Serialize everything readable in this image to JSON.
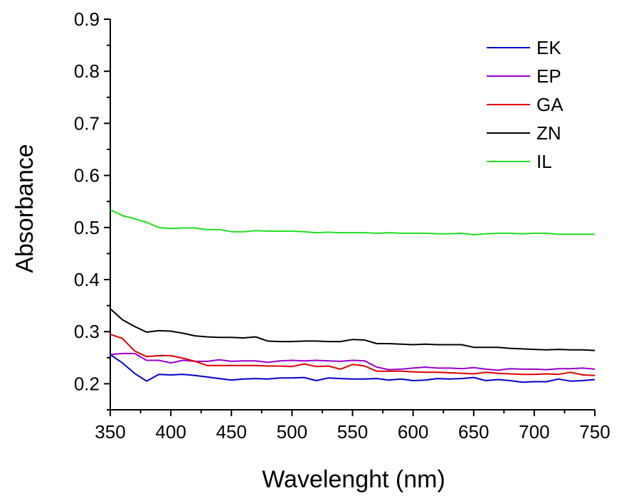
{
  "chart_data": {
    "type": "line",
    "title": "",
    "xlabel": "Wavelenght (nm)",
    "ylabel": "Absorbance",
    "xlim": [
      350,
      750
    ],
    "ylim": [
      0.15,
      0.9
    ],
    "x_ticks": [
      "350",
      "400",
      "450",
      "500",
      "550",
      "600",
      "650",
      "700",
      "750"
    ],
    "y_ticks": [
      "0.2",
      "0.3",
      "0.4",
      "0.5",
      "0.6",
      "0.7",
      "0.8",
      "0.9"
    ],
    "grid": false,
    "legend_position": "top-right",
    "x": [
      350,
      360,
      370,
      380,
      390,
      400,
      410,
      420,
      430,
      440,
      450,
      460,
      470,
      480,
      490,
      500,
      510,
      520,
      530,
      540,
      550,
      560,
      570,
      580,
      590,
      600,
      610,
      620,
      630,
      640,
      650,
      660,
      670,
      680,
      690,
      700,
      710,
      720,
      730,
      740,
      750
    ],
    "series": [
      {
        "name": "EK",
        "color": "#0000cc",
        "values": [
          0.256,
          0.24,
          0.22,
          0.205,
          0.218,
          0.217,
          0.218,
          0.216,
          0.213,
          0.21,
          0.207,
          0.209,
          0.21,
          0.209,
          0.211,
          0.211,
          0.212,
          0.206,
          0.211,
          0.21,
          0.209,
          0.209,
          0.21,
          0.207,
          0.209,
          0.206,
          0.207,
          0.21,
          0.209,
          0.21,
          0.212,
          0.206,
          0.208,
          0.206,
          0.203,
          0.204,
          0.204,
          0.209,
          0.205,
          0.206,
          0.208
        ]
      },
      {
        "name": "EP",
        "color": "#9900cc",
        "values": [
          0.256,
          0.258,
          0.258,
          0.245,
          0.245,
          0.24,
          0.245,
          0.243,
          0.243,
          0.246,
          0.243,
          0.244,
          0.244,
          0.241,
          0.244,
          0.245,
          0.244,
          0.245,
          0.244,
          0.243,
          0.245,
          0.244,
          0.232,
          0.227,
          0.228,
          0.23,
          0.232,
          0.23,
          0.23,
          0.229,
          0.231,
          0.228,
          0.226,
          0.229,
          0.228,
          0.228,
          0.227,
          0.229,
          0.229,
          0.23,
          0.228
        ]
      },
      {
        "name": "GA",
        "color": "#e00000",
        "values": [
          0.295,
          0.287,
          0.263,
          0.252,
          0.254,
          0.254,
          0.249,
          0.243,
          0.235,
          0.235,
          0.235,
          0.235,
          0.235,
          0.234,
          0.234,
          0.233,
          0.238,
          0.233,
          0.234,
          0.228,
          0.237,
          0.234,
          0.224,
          0.224,
          0.224,
          0.223,
          0.222,
          0.222,
          0.221,
          0.22,
          0.219,
          0.222,
          0.22,
          0.219,
          0.218,
          0.218,
          0.219,
          0.218,
          0.222,
          0.217,
          0.216
        ]
      },
      {
        "name": "ZN",
        "color": "#000000",
        "values": [
          0.344,
          0.323,
          0.31,
          0.299,
          0.302,
          0.301,
          0.297,
          0.292,
          0.29,
          0.289,
          0.289,
          0.288,
          0.29,
          0.282,
          0.281,
          0.281,
          0.282,
          0.282,
          0.281,
          0.281,
          0.285,
          0.284,
          0.277,
          0.277,
          0.276,
          0.275,
          0.276,
          0.275,
          0.275,
          0.275,
          0.27,
          0.27,
          0.27,
          0.268,
          0.267,
          0.266,
          0.265,
          0.266,
          0.265,
          0.265,
          0.264
        ]
      },
      {
        "name": "IL",
        "color": "#22dd22",
        "values": [
          0.534,
          0.523,
          0.517,
          0.51,
          0.5,
          0.498,
          0.499,
          0.499,
          0.496,
          0.496,
          0.492,
          0.492,
          0.494,
          0.493,
          0.493,
          0.493,
          0.492,
          0.49,
          0.491,
          0.49,
          0.49,
          0.49,
          0.489,
          0.49,
          0.489,
          0.489,
          0.489,
          0.488,
          0.488,
          0.489,
          0.486,
          0.488,
          0.489,
          0.489,
          0.488,
          0.489,
          0.489,
          0.487,
          0.487,
          0.487,
          0.487
        ]
      }
    ]
  }
}
